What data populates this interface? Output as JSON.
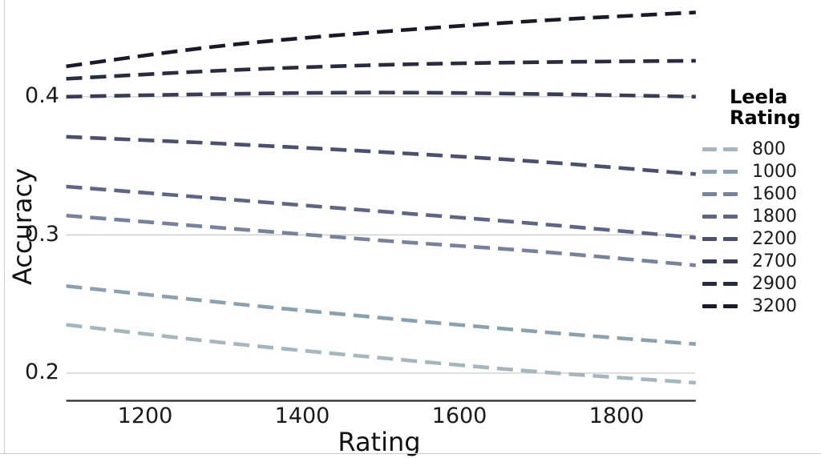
{
  "chart_data": {
    "type": "line",
    "line_style": "dashed",
    "title": "",
    "xlabel": "Rating",
    "ylabel": "Accuracy",
    "legend_title": "Leela Rating",
    "legend_position": "right",
    "grid": "horizontal-only",
    "xlim": [
      1100,
      1900
    ],
    "ylim": [
      0.18,
      0.47
    ],
    "x_ticks": [
      1200,
      1400,
      1600,
      1800
    ],
    "x_tick_labels": [
      "1200",
      "1400",
      "1600",
      "1800"
    ],
    "y_ticks": [
      0.2,
      0.3,
      0.4
    ],
    "y_tick_labels": [
      "0.2",
      "0.3",
      "0.4"
    ],
    "x": [
      1100,
      1300,
      1500,
      1700,
      1900
    ],
    "series": [
      {
        "name": "800",
        "color": "#a4b7bf",
        "values": [
          0.235,
          0.222,
          0.211,
          0.201,
          0.193
        ]
      },
      {
        "name": "1000",
        "color": "#8aa1b1",
        "values": [
          0.263,
          0.251,
          0.24,
          0.23,
          0.221
        ]
      },
      {
        "name": "1600",
        "color": "#76829e",
        "values": [
          0.314,
          0.305,
          0.296,
          0.288,
          0.278
        ]
      },
      {
        "name": "1800",
        "color": "#5f6589",
        "values": [
          0.335,
          0.326,
          0.317,
          0.308,
          0.298
        ]
      },
      {
        "name": "2200",
        "color": "#4b4f72",
        "values": [
          0.371,
          0.366,
          0.36,
          0.353,
          0.344
        ]
      },
      {
        "name": "2700",
        "color": "#393c59",
        "values": [
          0.4,
          0.402,
          0.403,
          0.402,
          0.4
        ]
      },
      {
        "name": "2900",
        "color": "#292b41",
        "values": [
          0.413,
          0.419,
          0.423,
          0.425,
          0.426
        ]
      },
      {
        "name": "3200",
        "color": "#191a29",
        "values": [
          0.422,
          0.437,
          0.447,
          0.455,
          0.461
        ]
      }
    ],
    "style": {
      "grid_color": "#c9c9c9",
      "spine_color": "#2b2b2b",
      "line_width": 4.6,
      "dash_pattern": "20 10"
    }
  }
}
